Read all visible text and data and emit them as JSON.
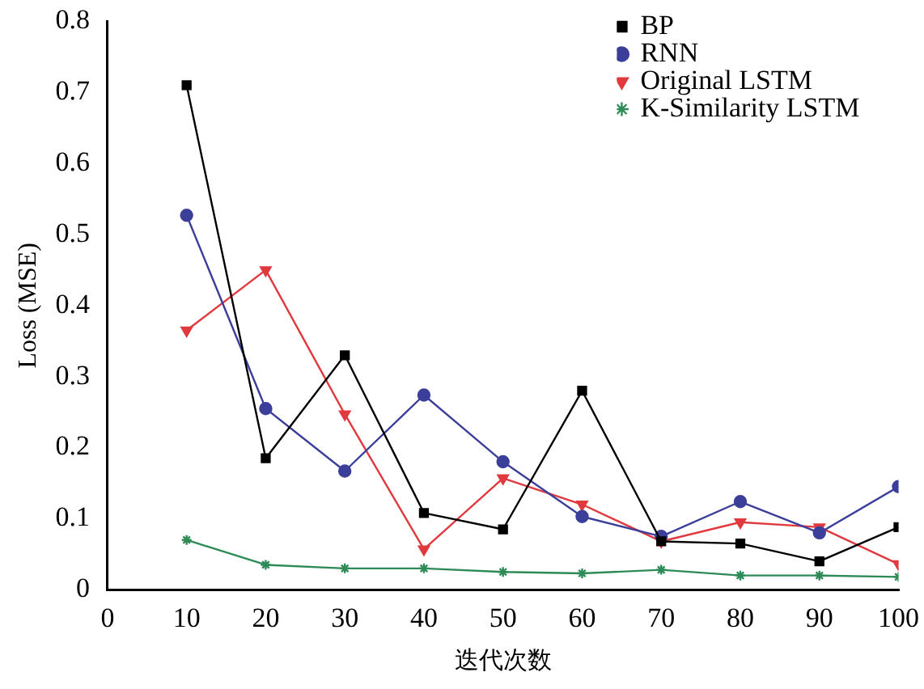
{
  "chart_data": {
    "type": "line",
    "xlabel": "迭代次数",
    "ylabel": "Loss (MSE)",
    "x": [
      10,
      20,
      30,
      40,
      50,
      60,
      70,
      80,
      90,
      100
    ],
    "xlim": [
      0,
      100
    ],
    "xticks": [
      0,
      10,
      20,
      30,
      40,
      50,
      60,
      70,
      80,
      90,
      100
    ],
    "ylim": [
      0,
      0.8
    ],
    "yticks": [
      0,
      0.1,
      0.2,
      0.3,
      0.4,
      0.5,
      0.6,
      0.7,
      0.8
    ],
    "grid": false,
    "legend": "top right",
    "series": [
      {
        "name": "BP",
        "color": "#000000",
        "marker": "square",
        "values": [
          0.71,
          0.185,
          0.33,
          0.108,
          0.085,
          0.28,
          0.068,
          0.065,
          0.04,
          0.088
        ]
      },
      {
        "name": "RNN",
        "color": "#3b3f9a",
        "marker": "circle",
        "values": [
          0.527,
          0.255,
          0.167,
          0.274,
          0.18,
          0.103,
          0.075,
          0.124,
          0.08,
          0.145
        ]
      },
      {
        "name": "Original LSTM",
        "color": "#e0393e",
        "marker": "triangle",
        "values": [
          0.365,
          0.45,
          0.247,
          0.057,
          0.157,
          0.12,
          0.068,
          0.095,
          0.088,
          0.036
        ]
      },
      {
        "name": "K-Similarity LSTM",
        "color": "#2e8b57",
        "marker": "cross",
        "values": [
          0.07,
          0.035,
          0.03,
          0.03,
          0.025,
          0.023,
          0.028,
          0.02,
          0.02,
          0.018
        ]
      }
    ]
  }
}
